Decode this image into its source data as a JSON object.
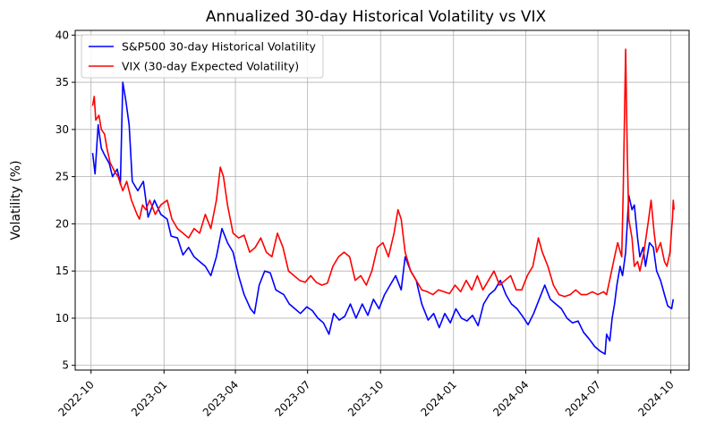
{
  "chart_data": {
    "type": "line",
    "title": "Annualized 30-day Historical Volatility vs VIX",
    "xlabel": "",
    "ylabel": "Volatility (%)",
    "ylim": [
      4.5,
      40.5
    ],
    "xlim": [
      "2022-09-11",
      "2024-10-24"
    ],
    "grid": true,
    "legend_position": "top-left",
    "x_ticks": [
      "2022-10",
      "2023-01",
      "2023-04",
      "2023-07",
      "2023-10",
      "2024-01",
      "2024-04",
      "2024-07",
      "2024-10"
    ],
    "y_ticks": [
      5,
      10,
      15,
      20,
      25,
      30,
      35,
      40
    ],
    "series": [
      {
        "name": "S&P500 30-day Historical Volatility",
        "color": "#0000ff",
        "points": [
          [
            "2022-10-03",
            27.5
          ],
          [
            "2022-10-06",
            25.3
          ],
          [
            "2022-10-10",
            30.5
          ],
          [
            "2022-10-14",
            28.0
          ],
          [
            "2022-10-18",
            27.3
          ],
          [
            "2022-10-24",
            26.4
          ],
          [
            "2022-10-28",
            25.0
          ],
          [
            "2022-11-03",
            25.8
          ],
          [
            "2022-11-07",
            24.2
          ],
          [
            "2022-11-10",
            35.0
          ],
          [
            "2022-11-14",
            33.0
          ],
          [
            "2022-11-18",
            30.5
          ],
          [
            "2022-11-22",
            24.5
          ],
          [
            "2022-11-29",
            23.5
          ],
          [
            "2022-12-06",
            24.5
          ],
          [
            "2022-12-12",
            20.7
          ],
          [
            "2022-12-20",
            22.5
          ],
          [
            "2022-12-28",
            21.0
          ],
          [
            "2023-01-05",
            20.5
          ],
          [
            "2023-01-10",
            18.7
          ],
          [
            "2023-01-18",
            18.5
          ],
          [
            "2023-01-25",
            16.7
          ],
          [
            "2023-02-01",
            17.5
          ],
          [
            "2023-02-08",
            16.5
          ],
          [
            "2023-02-15",
            16.0
          ],
          [
            "2023-02-22",
            15.5
          ],
          [
            "2023-03-01",
            14.5
          ],
          [
            "2023-03-08",
            16.5
          ],
          [
            "2023-03-15",
            19.5
          ],
          [
            "2023-03-22",
            18.0
          ],
          [
            "2023-03-29",
            17.0
          ],
          [
            "2023-04-05",
            14.5
          ],
          [
            "2023-04-12",
            12.5
          ],
          [
            "2023-04-20",
            11.0
          ],
          [
            "2023-04-25",
            10.5
          ],
          [
            "2023-05-01",
            13.5
          ],
          [
            "2023-05-08",
            15.0
          ],
          [
            "2023-05-15",
            14.8
          ],
          [
            "2023-05-22",
            13.0
          ],
          [
            "2023-06-01",
            12.5
          ],
          [
            "2023-06-08",
            11.5
          ],
          [
            "2023-06-15",
            11.0
          ],
          [
            "2023-06-22",
            10.5
          ],
          [
            "2023-06-30",
            11.2
          ],
          [
            "2023-07-07",
            10.8
          ],
          [
            "2023-07-14",
            10.0
          ],
          [
            "2023-07-21",
            9.5
          ],
          [
            "2023-07-28",
            8.3
          ],
          [
            "2023-08-03",
            10.5
          ],
          [
            "2023-08-10",
            9.8
          ],
          [
            "2023-08-17",
            10.2
          ],
          [
            "2023-08-24",
            11.5
          ],
          [
            "2023-08-31",
            10.0
          ],
          [
            "2023-09-08",
            11.5
          ],
          [
            "2023-09-15",
            10.3
          ],
          [
            "2023-09-22",
            12.0
          ],
          [
            "2023-09-29",
            11.0
          ],
          [
            "2023-10-06",
            12.5
          ],
          [
            "2023-10-13",
            13.5
          ],
          [
            "2023-10-20",
            14.5
          ],
          [
            "2023-10-27",
            13.0
          ],
          [
            "2023-11-01",
            16.5
          ],
          [
            "2023-11-08",
            15.0
          ],
          [
            "2023-11-15",
            14.0
          ],
          [
            "2023-11-22",
            11.5
          ],
          [
            "2023-11-30",
            9.8
          ],
          [
            "2023-12-07",
            10.5
          ],
          [
            "2023-12-14",
            9.0
          ],
          [
            "2023-12-21",
            10.5
          ],
          [
            "2023-12-28",
            9.5
          ],
          [
            "2024-01-04",
            11.0
          ],
          [
            "2024-01-11",
            10.0
          ],
          [
            "2024-01-18",
            9.7
          ],
          [
            "2024-01-25",
            10.3
          ],
          [
            "2024-02-01",
            9.2
          ],
          [
            "2024-02-08",
            11.5
          ],
          [
            "2024-02-15",
            12.5
          ],
          [
            "2024-02-22",
            13.0
          ],
          [
            "2024-02-29",
            14.0
          ],
          [
            "2024-03-07",
            12.5
          ],
          [
            "2024-03-14",
            11.5
          ],
          [
            "2024-03-21",
            11.0
          ],
          [
            "2024-03-28",
            10.2
          ],
          [
            "2024-04-04",
            9.3
          ],
          [
            "2024-04-11",
            10.5
          ],
          [
            "2024-04-18",
            12.0
          ],
          [
            "2024-04-25",
            13.5
          ],
          [
            "2024-05-02",
            12.0
          ],
          [
            "2024-05-09",
            11.5
          ],
          [
            "2024-05-16",
            11.0
          ],
          [
            "2024-05-23",
            10.0
          ],
          [
            "2024-05-30",
            9.5
          ],
          [
            "2024-06-06",
            9.7
          ],
          [
            "2024-06-13",
            8.5
          ],
          [
            "2024-06-20",
            7.8
          ],
          [
            "2024-06-27",
            7.0
          ],
          [
            "2024-07-04",
            6.5
          ],
          [
            "2024-07-10",
            6.2
          ],
          [
            "2024-07-12",
            8.3
          ],
          [
            "2024-07-16",
            7.6
          ],
          [
            "2024-07-19",
            10.0
          ],
          [
            "2024-07-22",
            11.5
          ],
          [
            "2024-07-25",
            13.5
          ],
          [
            "2024-07-29",
            15.5
          ],
          [
            "2024-08-01",
            14.5
          ],
          [
            "2024-08-05",
            17.0
          ],
          [
            "2024-08-07",
            20.0
          ],
          [
            "2024-08-09",
            23.0
          ],
          [
            "2024-08-13",
            21.5
          ],
          [
            "2024-08-16",
            22.0
          ],
          [
            "2024-08-20",
            18.5
          ],
          [
            "2024-08-23",
            16.5
          ],
          [
            "2024-08-27",
            17.5
          ],
          [
            "2024-08-30",
            15.5
          ],
          [
            "2024-09-04",
            18.0
          ],
          [
            "2024-09-09",
            17.5
          ],
          [
            "2024-09-13",
            15.0
          ],
          [
            "2024-09-18",
            14.0
          ],
          [
            "2024-09-23",
            12.5
          ],
          [
            "2024-09-27",
            11.3
          ],
          [
            "2024-10-02",
            11.0
          ],
          [
            "2024-10-04",
            12.0
          ]
        ]
      },
      {
        "name": "VIX (30-day Expected Volatility)",
        "color": "#ff0000",
        "points": [
          [
            "2022-10-03",
            32.5
          ],
          [
            "2022-10-05",
            33.5
          ],
          [
            "2022-10-07",
            31.0
          ],
          [
            "2022-10-11",
            31.5
          ],
          [
            "2022-10-14",
            30.0
          ],
          [
            "2022-10-18",
            29.5
          ],
          [
            "2022-10-21",
            28.0
          ],
          [
            "2022-10-25",
            26.5
          ],
          [
            "2022-10-31",
            25.5
          ],
          [
            "2022-11-04",
            25.0
          ],
          [
            "2022-11-10",
            23.5
          ],
          [
            "2022-11-15",
            24.5
          ],
          [
            "2022-11-21",
            22.5
          ],
          [
            "2022-11-28",
            21.0
          ],
          [
            "2022-12-01",
            20.5
          ],
          [
            "2022-12-05",
            22.0
          ],
          [
            "2022-12-09",
            21.5
          ],
          [
            "2022-12-14",
            22.5
          ],
          [
            "2022-12-21",
            21.0
          ],
          [
            "2022-12-28",
            22.0
          ],
          [
            "2023-01-05",
            22.5
          ],
          [
            "2023-01-11",
            20.5
          ],
          [
            "2023-01-18",
            19.5
          ],
          [
            "2023-01-25",
            19.0
          ],
          [
            "2023-02-01",
            18.5
          ],
          [
            "2023-02-08",
            19.5
          ],
          [
            "2023-02-15",
            19.0
          ],
          [
            "2023-02-22",
            21.0
          ],
          [
            "2023-03-01",
            19.5
          ],
          [
            "2023-03-08",
            22.5
          ],
          [
            "2023-03-13",
            26.0
          ],
          [
            "2023-03-17",
            25.0
          ],
          [
            "2023-03-22",
            22.0
          ],
          [
            "2023-03-29",
            19.0
          ],
          [
            "2023-04-05",
            18.5
          ],
          [
            "2023-04-12",
            18.8
          ],
          [
            "2023-04-19",
            17.0
          ],
          [
            "2023-04-26",
            17.5
          ],
          [
            "2023-05-03",
            18.5
          ],
          [
            "2023-05-10",
            17.0
          ],
          [
            "2023-05-17",
            16.5
          ],
          [
            "2023-05-24",
            19.0
          ],
          [
            "2023-05-31",
            17.5
          ],
          [
            "2023-06-07",
            15.0
          ],
          [
            "2023-06-14",
            14.5
          ],
          [
            "2023-06-21",
            14.0
          ],
          [
            "2023-06-28",
            13.8
          ],
          [
            "2023-07-05",
            14.5
          ],
          [
            "2023-07-12",
            13.8
          ],
          [
            "2023-07-19",
            13.5
          ],
          [
            "2023-07-26",
            13.7
          ],
          [
            "2023-08-02",
            15.5
          ],
          [
            "2023-08-09",
            16.5
          ],
          [
            "2023-08-16",
            17.0
          ],
          [
            "2023-08-23",
            16.5
          ],
          [
            "2023-08-30",
            14.0
          ],
          [
            "2023-09-06",
            14.5
          ],
          [
            "2023-09-13",
            13.5
          ],
          [
            "2023-09-20",
            15.0
          ],
          [
            "2023-09-27",
            17.5
          ],
          [
            "2023-10-04",
            18.0
          ],
          [
            "2023-10-11",
            16.5
          ],
          [
            "2023-10-18",
            19.0
          ],
          [
            "2023-10-23",
            21.5
          ],
          [
            "2023-10-27",
            20.5
          ],
          [
            "2023-11-01",
            17.0
          ],
          [
            "2023-11-08",
            15.0
          ],
          [
            "2023-11-15",
            14.0
          ],
          [
            "2023-11-22",
            13.0
          ],
          [
            "2023-11-29",
            12.8
          ],
          [
            "2023-12-06",
            12.5
          ],
          [
            "2023-12-13",
            13.0
          ],
          [
            "2023-12-20",
            12.8
          ],
          [
            "2023-12-27",
            12.6
          ],
          [
            "2024-01-03",
            13.5
          ],
          [
            "2024-01-10",
            12.8
          ],
          [
            "2024-01-17",
            14.0
          ],
          [
            "2024-01-24",
            13.0
          ],
          [
            "2024-01-31",
            14.5
          ],
          [
            "2024-02-07",
            13.0
          ],
          [
            "2024-02-14",
            14.0
          ],
          [
            "2024-02-21",
            15.0
          ],
          [
            "2024-02-28",
            13.5
          ],
          [
            "2024-03-06",
            14.0
          ],
          [
            "2024-03-13",
            14.5
          ],
          [
            "2024-03-20",
            13.0
          ],
          [
            "2024-03-27",
            13.0
          ],
          [
            "2024-04-03",
            14.5
          ],
          [
            "2024-04-10",
            15.5
          ],
          [
            "2024-04-17",
            18.5
          ],
          [
            "2024-04-22",
            17.0
          ],
          [
            "2024-04-29",
            15.5
          ],
          [
            "2024-05-06",
            13.5
          ],
          [
            "2024-05-13",
            12.5
          ],
          [
            "2024-05-20",
            12.3
          ],
          [
            "2024-05-27",
            12.5
          ],
          [
            "2024-06-03",
            13.0
          ],
          [
            "2024-06-10",
            12.5
          ],
          [
            "2024-06-17",
            12.5
          ],
          [
            "2024-06-24",
            12.8
          ],
          [
            "2024-07-01",
            12.5
          ],
          [
            "2024-07-08",
            12.8
          ],
          [
            "2024-07-12",
            12.5
          ],
          [
            "2024-07-17",
            14.5
          ],
          [
            "2024-07-22",
            16.5
          ],
          [
            "2024-07-26",
            18.0
          ],
          [
            "2024-07-31",
            16.5
          ],
          [
            "2024-08-02",
            23.5
          ],
          [
            "2024-08-05",
            38.5
          ],
          [
            "2024-08-07",
            27.5
          ],
          [
            "2024-08-09",
            20.5
          ],
          [
            "2024-08-13",
            18.5
          ],
          [
            "2024-08-16",
            15.5
          ],
          [
            "2024-08-20",
            16.0
          ],
          [
            "2024-08-23",
            15.0
          ],
          [
            "2024-08-28",
            17.0
          ],
          [
            "2024-09-03",
            20.5
          ],
          [
            "2024-09-06",
            22.5
          ],
          [
            "2024-09-10",
            19.0
          ],
          [
            "2024-09-13",
            17.0
          ],
          [
            "2024-09-18",
            18.0
          ],
          [
            "2024-09-23",
            16.0
          ],
          [
            "2024-09-26",
            15.5
          ],
          [
            "2024-09-30",
            17.0
          ],
          [
            "2024-10-02",
            19.5
          ],
          [
            "2024-10-03",
            20.5
          ],
          [
            "2024-10-04",
            22.5
          ],
          [
            "2024-10-05",
            21.5
          ]
        ]
      }
    ]
  }
}
